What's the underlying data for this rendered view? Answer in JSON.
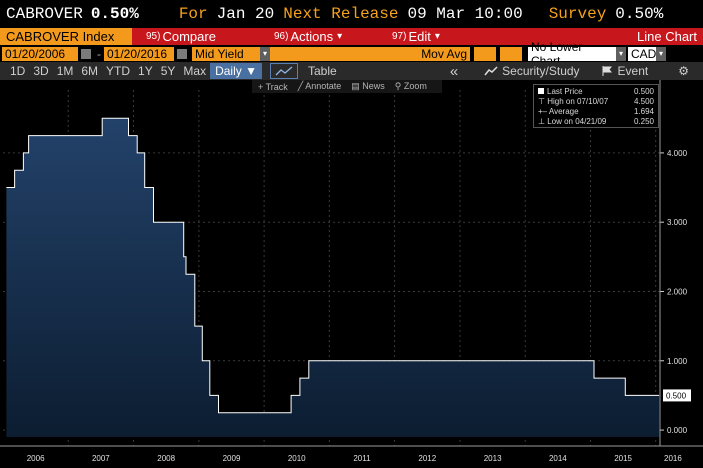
{
  "header": {
    "ticker": "CABROVER",
    "last_value": "0.50%",
    "for_label": "For",
    "for_date": "Jan 20",
    "next_release_label": "Next Release",
    "next_release_date": "09 Mar 10:00",
    "survey_label": "Survey",
    "survey_value": "0.50%"
  },
  "command_bar": {
    "security": "CABROVER Index",
    "compare": {
      "num": "95)",
      "label": "Compare"
    },
    "actions": {
      "num": "96)",
      "label": "Actions",
      "arrow": "▾"
    },
    "edit": {
      "num": "97)",
      "label": "Edit",
      "arrow": "▾"
    },
    "chart_type": "Line Chart"
  },
  "range_bar": {
    "start_date": "01/20/2006",
    "end_date": "01/20/2016",
    "dash": "-",
    "field": "Mid Yield",
    "mov_avg_label": "Mov Avg",
    "lower_chart": "No Lower Chart",
    "currency": "CAD"
  },
  "toolbar": {
    "periods": [
      "1D",
      "3D",
      "1M",
      "6M",
      "YTD",
      "1Y",
      "5Y",
      "Max"
    ],
    "frequency": "Daily",
    "table_label": "Table",
    "collapse": "«",
    "security_study": "Security/Study",
    "event": "Event",
    "gear": "⚙"
  },
  "sub_toolbar": {
    "track": "Track",
    "annotate": "Annotate",
    "news": "News",
    "zoom": "Zoom"
  },
  "legend": {
    "last_price_label": "Last Price",
    "last_price_value": "0.500",
    "high_label": "High on 07/10/07",
    "high_value": "4.500",
    "average_label": "Average",
    "average_value": "1.694",
    "low_label": "Low on 04/21/09",
    "low_value": "0.250"
  },
  "colors": {
    "orange": "#f39a1c",
    "red": "#c8161d",
    "area_top": "#1e3a5c",
    "area_bottom": "#0e2238",
    "line": "#ffffff"
  },
  "chart_data": {
    "type": "area",
    "ylim": [
      -0.1,
      4.85
    ],
    "y_ticks": [
      "0.000",
      "1.000",
      "2.000",
      "3.000",
      "4.000"
    ],
    "y_tick_values": [
      0,
      1,
      2,
      3,
      4
    ],
    "x_tick_labels": [
      "2006",
      "2007",
      "2008",
      "2009",
      "2010",
      "2011",
      "2012",
      "2013",
      "2014",
      "2015",
      "2016"
    ],
    "last_label": "0.500",
    "x": [
      "2006-01-20",
      "2006-03-07",
      "2006-04-25",
      "2006-05-24",
      "2006-07-11",
      "2007-07-10",
      "2007-12-04",
      "2008-01-22",
      "2008-03-04",
      "2008-04-22",
      "2008-10-08",
      "2008-10-21",
      "2008-12-09",
      "2009-01-20",
      "2009-03-03",
      "2009-04-21",
      "2010-06-01",
      "2010-07-20",
      "2010-09-08",
      "2015-01-21",
      "2015-07-15",
      "2016-01-20"
    ],
    "series": [
      {
        "values": [
          3.5,
          3.75,
          4.0,
          4.25,
          4.25,
          4.5,
          4.25,
          4.0,
          3.5,
          3.0,
          2.5,
          2.25,
          1.5,
          1.0,
          0.5,
          0.25,
          0.5,
          0.75,
          1.0,
          0.75,
          0.5,
          0.5
        ]
      }
    ]
  }
}
